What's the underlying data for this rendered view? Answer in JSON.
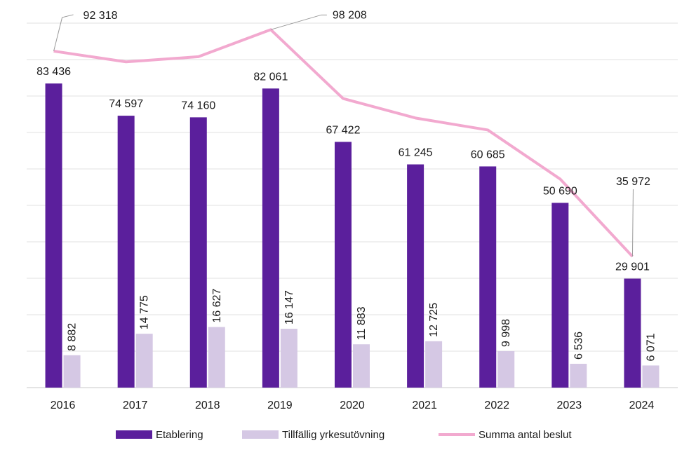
{
  "chart_data": {
    "type": "bar",
    "categories": [
      "2016",
      "2017",
      "2018",
      "2019",
      "2020",
      "2021",
      "2022",
      "2023",
      "2024"
    ],
    "series": [
      {
        "name": "Etablering",
        "kind": "bar",
        "color": "#5b1f9c",
        "values": [
          83436,
          74597,
          74160,
          82061,
          67422,
          61245,
          60685,
          50690,
          29901
        ],
        "labels": [
          "83 436",
          "74 597",
          "74 160",
          "82 061",
          "67 422",
          "61 245",
          "60 685",
          "50 690",
          "29 901"
        ]
      },
      {
        "name": "Tillfällig yrkesutövning",
        "kind": "bar",
        "color": "#d5c8e4",
        "values": [
          8882,
          14775,
          16627,
          16147,
          11883,
          12725,
          9998,
          6536,
          6071
        ],
        "labels": [
          "8 882",
          "14 775",
          "16 627",
          "16 147",
          "11 883",
          "12 725",
          "9 998",
          "6 536",
          "6 071"
        ]
      },
      {
        "name": "Summa antal beslut",
        "kind": "line",
        "color": "#f2a9cf",
        "values": [
          92318,
          89372,
          90787,
          98208,
          79305,
          73970,
          70683,
          57226,
          35972
        ],
        "labels": [
          "92 318",
          "",
          "",
          "98 208",
          "",
          "",
          "",
          "",
          "35 972"
        ]
      }
    ],
    "ylim": [
      0,
      100000
    ],
    "gridlines": true,
    "legend_position": "bottom"
  }
}
